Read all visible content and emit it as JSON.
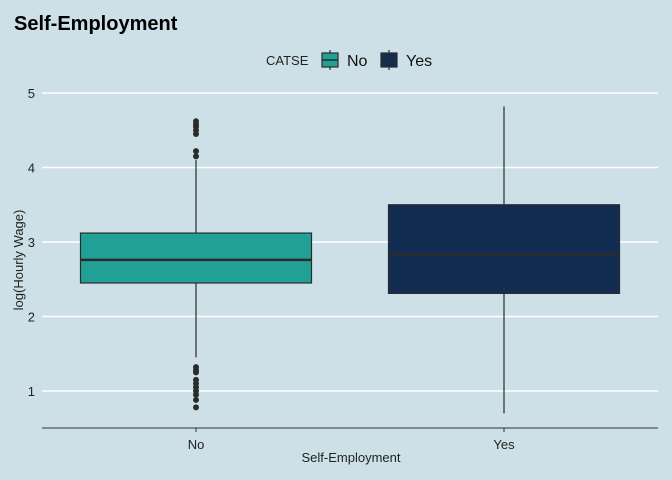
{
  "chart_data": {
    "type": "boxplot",
    "title": "Self-Employment",
    "xlabel": "Self-Employment",
    "ylabel": "log(Hourly Wage)",
    "categories": [
      "No",
      "Yes"
    ],
    "ylim": [
      0.5,
      5.0
    ],
    "yticks": [
      1,
      2,
      3,
      4,
      5
    ],
    "grid": "horizontal",
    "legend": {
      "title": "CATSE",
      "position": "top",
      "entries": [
        {
          "label": "No",
          "color": "#21a196"
        },
        {
          "label": "Yes",
          "color": "#132d52"
        }
      ]
    },
    "boxes": [
      {
        "category": "No",
        "whisker_low": 1.45,
        "q1": 2.45,
        "median": 2.76,
        "q3": 3.12,
        "whisker_high": 4.1,
        "outliers": [
          4.62,
          4.58,
          4.55,
          4.5,
          4.45,
          4.22,
          4.15,
          1.32,
          1.28,
          1.25,
          1.15,
          1.1,
          1.05,
          1.0,
          0.95,
          0.88,
          0.78
        ],
        "color": "#21a196"
      },
      {
        "category": "Yes",
        "whisker_low": 0.7,
        "q1": 2.31,
        "median": 2.83,
        "q3": 3.5,
        "whisker_high": 4.82,
        "outliers": [],
        "color": "#132d52"
      }
    ]
  },
  "colors": {
    "background": "#cde0e7",
    "grid": "#ffffff",
    "outline": "#2b2b2b"
  }
}
